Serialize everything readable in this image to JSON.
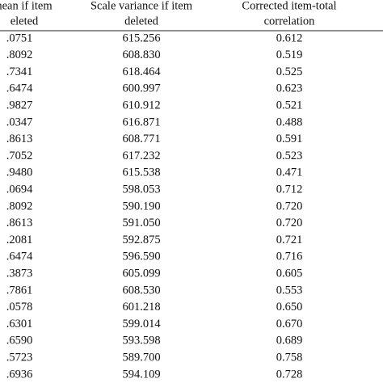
{
  "table": {
    "header": [
      [
        "nean if item",
        "eleted"
      ],
      [
        "Scale variance if item",
        "deleted"
      ],
      [
        "Corrected item-total",
        "correlation"
      ]
    ],
    "rows": [
      [
        ".0751",
        "615.256",
        "0.612"
      ],
      [
        ".8092",
        "608.830",
        "0.519"
      ],
      [
        ".7341",
        "618.464",
        "0.525"
      ],
      [
        ".6474",
        "600.997",
        "0.623"
      ],
      [
        ".9827",
        "610.912",
        "0.521"
      ],
      [
        ".0347",
        "616.871",
        "0.488"
      ],
      [
        ".8613",
        "608.771",
        "0.591"
      ],
      [
        ".7052",
        "617.232",
        "0.523"
      ],
      [
        ".9480",
        "615.538",
        "0.471"
      ],
      [
        ".0694",
        "598.053",
        "0.712"
      ],
      [
        ".8092",
        "590.190",
        "0.720"
      ],
      [
        ".8613",
        "591.050",
        "0.720"
      ],
      [
        ".2081",
        "592.875",
        "0.721"
      ],
      [
        ".6474",
        "596.590",
        "0.716"
      ],
      [
        ".3873",
        "605.099",
        "0.605"
      ],
      [
        ".7861",
        "608.530",
        "0.553"
      ],
      [
        ".0578",
        "601.218",
        "0.650"
      ],
      [
        ".6301",
        "599.014",
        "0.670"
      ],
      [
        ".6590",
        "593.598",
        "0.689"
      ],
      [
        ".5723",
        "589.700",
        "0.758"
      ],
      [
        ".6936",
        "594.109",
        "0.728"
      ]
    ]
  }
}
